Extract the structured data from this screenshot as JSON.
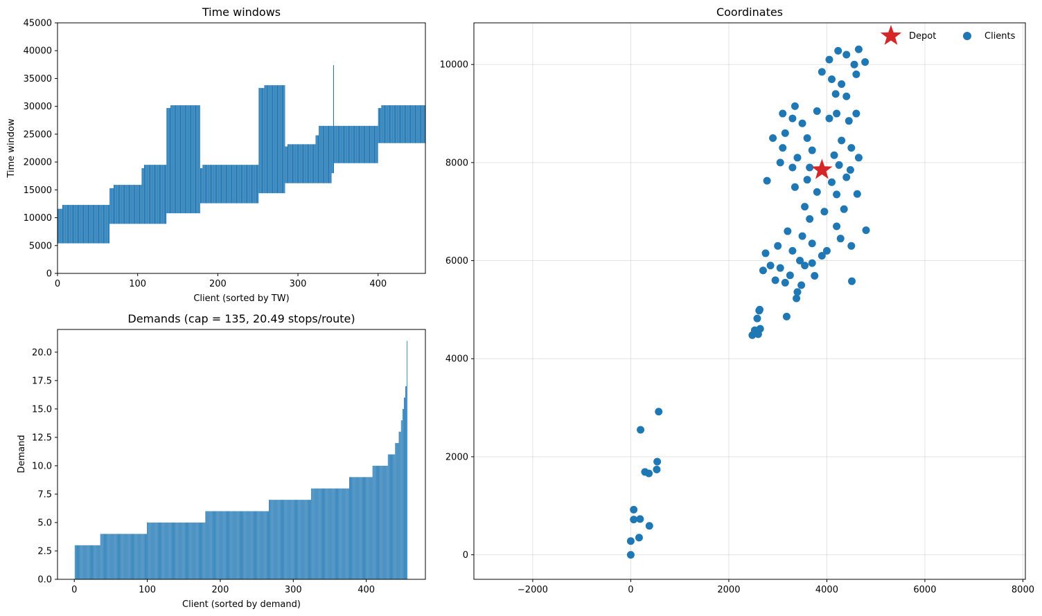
{
  "colors": {
    "bar": "#1f77b4",
    "client_marker": "#1f77b4",
    "depot_marker": "#d62728",
    "grid": "#b0b0b0"
  },
  "chart_data": [
    {
      "id": "time_windows",
      "type": "bar",
      "title": "Time windows",
      "xlabel": "Client (sorted by TW)",
      "ylabel": "Time window",
      "xlim": [
        0,
        459
      ],
      "ylim": [
        0,
        45000
      ],
      "x_ticks": [
        "0",
        "100",
        "200",
        "300",
        "400"
      ],
      "y_ticks": [
        "0",
        "5000",
        "10000",
        "15000",
        "20000",
        "25000",
        "30000",
        "35000",
        "40000",
        "45000"
      ],
      "client_count": 459,
      "segments": [
        {
          "from": 0,
          "to": 6,
          "start": 5400,
          "end": 11600
        },
        {
          "from": 6,
          "to": 65,
          "start": 5400,
          "end": 12300
        },
        {
          "from": 65,
          "to": 70,
          "start": 8900,
          "end": 15300
        },
        {
          "from": 70,
          "to": 105,
          "start": 8900,
          "end": 15900
        },
        {
          "from": 105,
          "to": 108,
          "start": 8900,
          "end": 18900
        },
        {
          "from": 108,
          "to": 136,
          "start": 8900,
          "end": 19500
        },
        {
          "from": 136,
          "to": 141,
          "start": 10800,
          "end": 29700
        },
        {
          "from": 141,
          "to": 178,
          "start": 10800,
          "end": 30200
        },
        {
          "from": 178,
          "to": 181,
          "start": 12600,
          "end": 18900
        },
        {
          "from": 181,
          "to": 251,
          "start": 12600,
          "end": 19500
        },
        {
          "from": 251,
          "to": 258,
          "start": 14400,
          "end": 33300
        },
        {
          "from": 258,
          "to": 284,
          "start": 14400,
          "end": 33800
        },
        {
          "from": 284,
          "to": 287,
          "start": 16200,
          "end": 22800
        },
        {
          "from": 287,
          "to": 322,
          "start": 16200,
          "end": 23200
        },
        {
          "from": 322,
          "to": 326,
          "start": 16200,
          "end": 24800
        },
        {
          "from": 326,
          "to": 342,
          "start": 16200,
          "end": 26500
        },
        {
          "from": 342,
          "to": 344,
          "start": 18000,
          "end": 26500
        },
        {
          "from": 344,
          "to": 345,
          "start": 18000,
          "end": 37400
        },
        {
          "from": 345,
          "to": 400,
          "start": 19800,
          "end": 26500
        },
        {
          "from": 400,
          "to": 404,
          "start": 23400,
          "end": 29700
        },
        {
          "from": 404,
          "to": 459,
          "start": 23400,
          "end": 30200
        }
      ]
    },
    {
      "id": "demands",
      "type": "bar",
      "title": "Demands (cap = 135, 20.49 stops/route)",
      "xlabel": "Client (sorted by demand)",
      "ylabel": "Demand",
      "xlim": [
        -23,
        481
      ],
      "ylim": [
        0,
        22
      ],
      "x_ticks": [
        "0",
        "100",
        "200",
        "300",
        "400"
      ],
      "y_ticks": [
        "0.0",
        "2.5",
        "5.0",
        "7.5",
        "10.0",
        "12.5",
        "15.0",
        "17.5",
        "20.0"
      ],
      "client_count": 457,
      "steps": [
        {
          "from": 0,
          "to": 1,
          "value": 0
        },
        {
          "from": 1,
          "to": 36,
          "value": 3
        },
        {
          "from": 36,
          "to": 100,
          "value": 4
        },
        {
          "from": 100,
          "to": 180,
          "value": 5
        },
        {
          "from": 180,
          "to": 267,
          "value": 6
        },
        {
          "from": 267,
          "to": 325,
          "value": 7
        },
        {
          "from": 325,
          "to": 377,
          "value": 8
        },
        {
          "from": 377,
          "to": 409,
          "value": 9
        },
        {
          "from": 409,
          "to": 430,
          "value": 10
        },
        {
          "from": 430,
          "to": 440,
          "value": 11
        },
        {
          "from": 440,
          "to": 445,
          "value": 12
        },
        {
          "from": 445,
          "to": 448,
          "value": 13
        },
        {
          "from": 448,
          "to": 450,
          "value": 14
        },
        {
          "from": 450,
          "to": 452,
          "value": 15
        },
        {
          "from": 452,
          "to": 454,
          "value": 16
        },
        {
          "from": 454,
          "to": 456,
          "value": 17
        },
        {
          "from": 456,
          "to": 457,
          "value": 21
        }
      ]
    },
    {
      "id": "coordinates",
      "type": "scatter",
      "title": "Coordinates",
      "xlim": [
        -3200,
        8050
      ],
      "ylim": [
        -500,
        10850
      ],
      "x_ticks": [
        -2000,
        0,
        2000,
        4000,
        6000,
        8000
      ],
      "y_ticks": [
        0,
        2000,
        4000,
        6000,
        8000,
        10000
      ],
      "grid": true,
      "legend_position": "top-right",
      "depot": {
        "name": "Depot",
        "x": 3900,
        "y": 7850
      },
      "clients": {
        "name": "Clients",
        "points": [
          [
            0,
            0
          ],
          [
            0,
            280
          ],
          [
            60,
            720
          ],
          [
            60,
            920
          ],
          [
            170,
            350
          ],
          [
            190,
            730
          ],
          [
            380,
            590
          ],
          [
            200,
            2550
          ],
          [
            290,
            1690
          ],
          [
            370,
            1660
          ],
          [
            530,
            1740
          ],
          [
            540,
            1900
          ],
          [
            570,
            2920
          ],
          [
            2480,
            4480
          ],
          [
            2530,
            4580
          ],
          [
            2580,
            4820
          ],
          [
            2600,
            4500
          ],
          [
            2620,
            4980
          ],
          [
            2630,
            5000
          ],
          [
            2640,
            4610
          ],
          [
            3180,
            4860
          ],
          [
            3380,
            5230
          ],
          [
            3400,
            5360
          ],
          [
            3480,
            5500
          ],
          [
            3750,
            5690
          ],
          [
            4510,
            5580
          ],
          [
            4800,
            6620
          ],
          [
            4620,
            7360
          ],
          [
            2780,
            7630
          ],
          [
            3900,
            9850
          ],
          [
            4050,
            10100
          ],
          [
            4230,
            10280
          ],
          [
            4400,
            10200
          ],
          [
            4560,
            10000
          ],
          [
            4650,
            10310
          ],
          [
            4100,
            9700
          ],
          [
            4300,
            9600
          ],
          [
            4600,
            9800
          ],
          [
            4780,
            10050
          ],
          [
            4180,
            9400
          ],
          [
            4400,
            9350
          ],
          [
            3300,
            8900
          ],
          [
            3350,
            9150
          ],
          [
            3100,
            9000
          ],
          [
            3500,
            8800
          ],
          [
            3800,
            9050
          ],
          [
            4050,
            8900
          ],
          [
            4200,
            9000
          ],
          [
            4450,
            8850
          ],
          [
            4600,
            9000
          ],
          [
            3150,
            8600
          ],
          [
            2900,
            8500
          ],
          [
            3600,
            8500
          ],
          [
            4300,
            8450
          ],
          [
            4500,
            8300
          ],
          [
            3100,
            8300
          ],
          [
            3400,
            8100
          ],
          [
            3700,
            8250
          ],
          [
            4150,
            8150
          ],
          [
            4650,
            8100
          ],
          [
            3050,
            8000
          ],
          [
            3300,
            7900
          ],
          [
            3650,
            7900
          ],
          [
            4250,
            7950
          ],
          [
            4480,
            7850
          ],
          [
            3350,
            7500
          ],
          [
            3600,
            7650
          ],
          [
            4100,
            7600
          ],
          [
            4400,
            7700
          ],
          [
            3550,
            7100
          ],
          [
            3800,
            7400
          ],
          [
            4200,
            7350
          ],
          [
            4350,
            7050
          ],
          [
            3650,
            6850
          ],
          [
            3950,
            7000
          ],
          [
            4200,
            6700
          ],
          [
            3200,
            6600
          ],
          [
            3500,
            6500
          ],
          [
            3700,
            6350
          ],
          [
            4000,
            6200
          ],
          [
            4280,
            6450
          ],
          [
            4500,
            6300
          ],
          [
            3000,
            6300
          ],
          [
            3300,
            6200
          ],
          [
            3450,
            6000
          ],
          [
            3700,
            5950
          ],
          [
            3900,
            6100
          ],
          [
            3050,
            5850
          ],
          [
            3250,
            5700
          ],
          [
            3550,
            5900
          ],
          [
            2700,
            5800
          ],
          [
            2950,
            5600
          ],
          [
            3150,
            5550
          ],
          [
            2850,
            5900
          ],
          [
            2750,
            6150
          ]
        ]
      }
    }
  ]
}
